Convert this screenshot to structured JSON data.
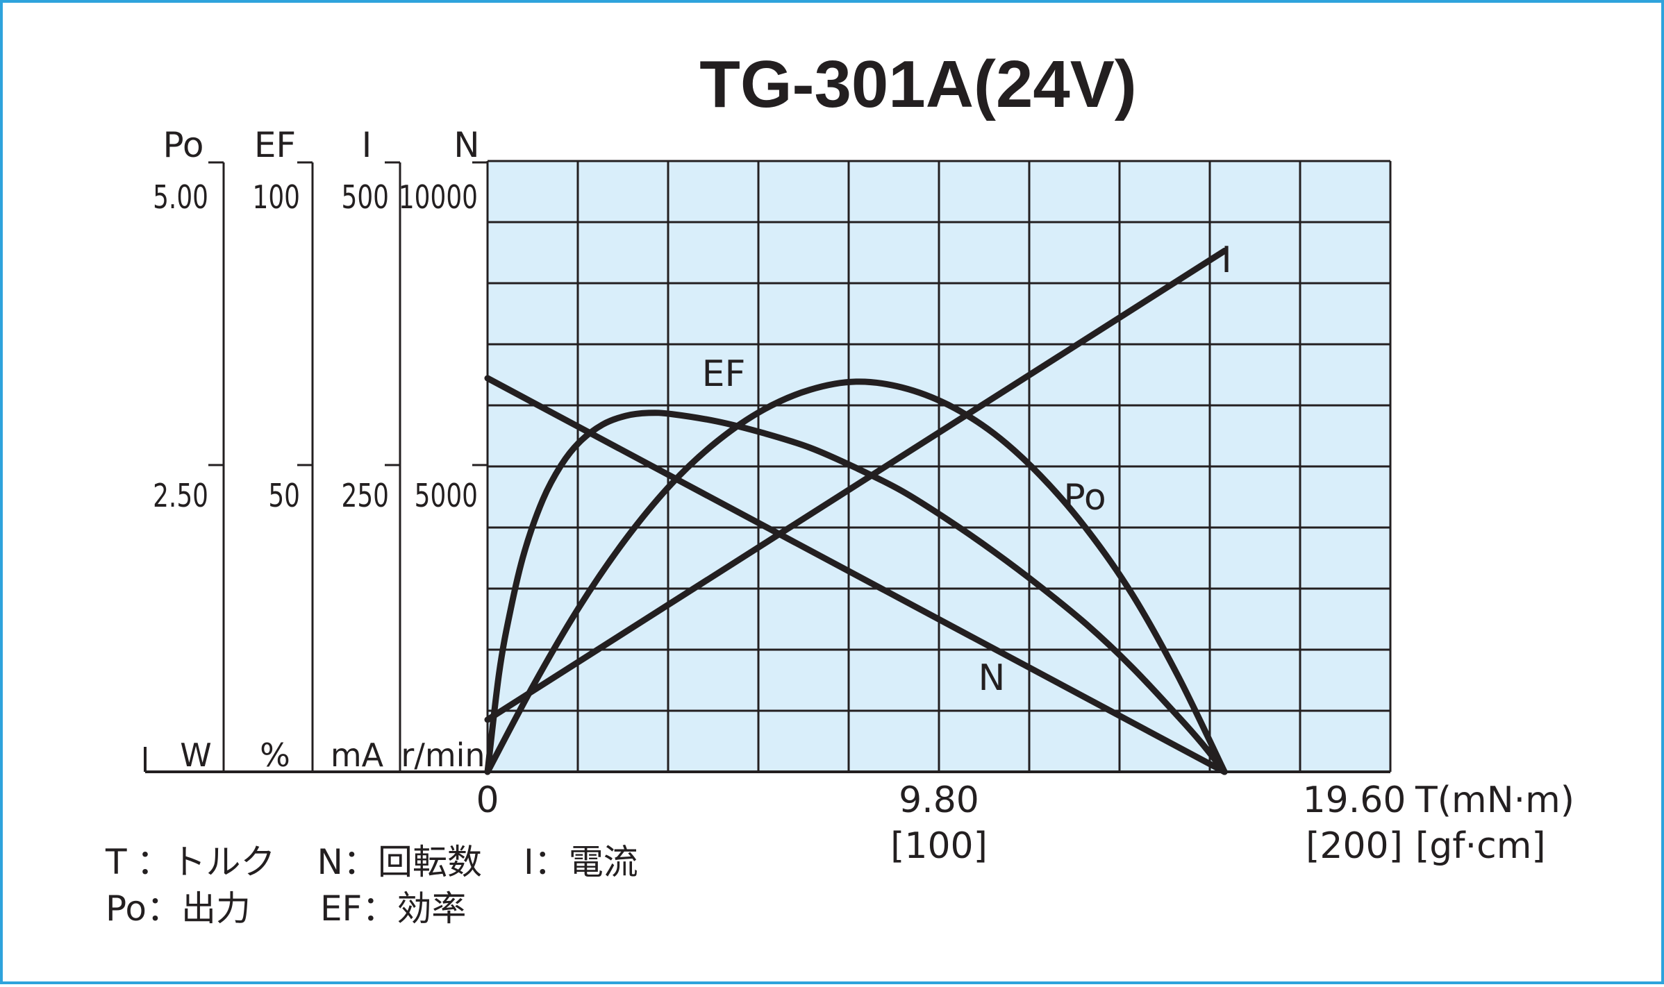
{
  "chart_data": {
    "type": "line",
    "title": "TG-301A(24V)",
    "background_color": "#d9eefa",
    "grid_color": "#231f20",
    "line_color": "#231f20",
    "border_color": "#2ea3dc",
    "x_axis": {
      "label": "T(mN·m)",
      "secondary_label": "[gf·cm]",
      "range": [
        0,
        19.6
      ],
      "ticks": [
        {
          "value": 0,
          "label": "0",
          "secondary": ""
        },
        {
          "value": 9.8,
          "label": "9.80",
          "secondary": "[100]"
        },
        {
          "value": 19.6,
          "label": "19.60",
          "secondary": "[200]"
        }
      ]
    },
    "y_axes": [
      {
        "name": "Po",
        "unit": "W",
        "range": [
          0,
          5
        ],
        "ticks": [
          "5.00",
          "2.50"
        ]
      },
      {
        "name": "EF",
        "unit": "%",
        "range": [
          0,
          100
        ],
        "ticks": [
          "100",
          "50"
        ]
      },
      {
        "name": "I",
        "unit": "mA",
        "range": [
          0,
          500
        ],
        "ticks": [
          "500",
          "250"
        ]
      },
      {
        "name": "N",
        "unit": "r/min",
        "range": [
          0,
          10000
        ],
        "ticks": [
          "10000",
          "5000"
        ]
      }
    ],
    "series": [
      {
        "name": "N",
        "axis": "N",
        "x": [
          0,
          16.0
        ],
        "y": [
          6800,
          0
        ]
      },
      {
        "name": "I",
        "axis": "I",
        "x": [
          0,
          16.0
        ],
        "y": [
          45,
          450
        ]
      },
      {
        "name": "Po",
        "axis": "Po",
        "x": [
          0,
          1,
          2,
          3,
          4,
          5,
          6,
          7,
          8,
          9,
          10,
          11,
          12,
          13,
          14,
          15,
          16
        ],
        "y": [
          0,
          0.75,
          1.43,
          2.01,
          2.49,
          2.86,
          3.13,
          3.3,
          3.37,
          3.32,
          3.17,
          2.92,
          2.56,
          2.1,
          1.53,
          0.82,
          0
        ]
      },
      {
        "name": "EF",
        "axis": "EF",
        "x": [
          0,
          0.25,
          0.5,
          0.8,
          1.2,
          1.6,
          2.0,
          2.5,
          3.0,
          3.5,
          4.0,
          5.0,
          6.0,
          7.0,
          8.0,
          9.0,
          10.0,
          11.0,
          12.0,
          13.0,
          14.0,
          15.0,
          15.5,
          16.0
        ],
        "y": [
          0,
          17,
          28,
          38,
          47,
          53,
          57,
          60,
          61.5,
          62,
          61.8,
          60.5,
          58.5,
          56,
          52.5,
          48.5,
          43.5,
          38,
          32,
          25.5,
          18,
          9.5,
          5,
          0
        ]
      }
    ],
    "annotations": [
      {
        "text": "I"
      },
      {
        "text": "EF"
      },
      {
        "text": "Po"
      },
      {
        "text": "N"
      }
    ],
    "grid": true
  },
  "legend": {
    "line1": [
      {
        "key": "T",
        "sep": "：",
        "desc": "トルク"
      },
      {
        "key": "N",
        "sep": "：",
        "desc": "回転数"
      },
      {
        "key": "I",
        "sep": "：",
        "desc": "電流"
      }
    ],
    "line2": [
      {
        "key": "Po",
        "sep": "：",
        "desc": "出力"
      },
      {
        "key": "EF",
        "sep": "：",
        "desc": "効率"
      }
    ]
  }
}
